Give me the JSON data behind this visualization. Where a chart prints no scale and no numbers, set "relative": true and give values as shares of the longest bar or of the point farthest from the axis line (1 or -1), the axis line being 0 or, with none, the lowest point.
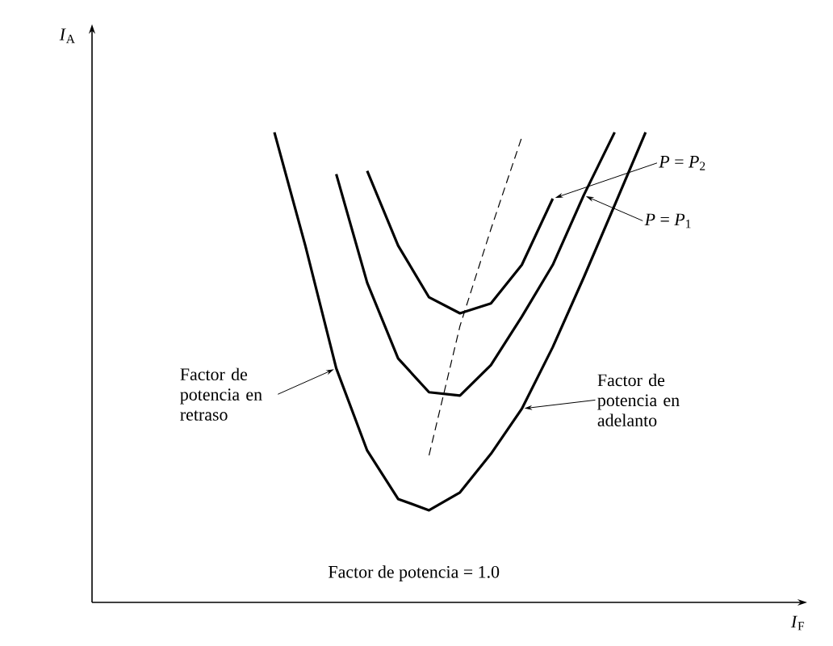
{
  "chart_data": {
    "type": "line",
    "relative": true,
    "categories": [
      null,
      null,
      null,
      null,
      null,
      null,
      null,
      null,
      null,
      null,
      null,
      null,
      null
    ],
    "series": [
      {
        "color": "#000000",
        "values": [
          1.0,
          0.759,
          0.498,
          0.323,
          0.22,
          0.196,
          0.234,
          0.316,
          0.412,
          0.543,
          0.691,
          0.845,
          1.0
        ]
      },
      {
        "color": "#000000",
        "values": [
          null,
          null,
          0.911,
          0.68,
          0.519,
          0.447,
          0.44,
          0.505,
          0.608,
          0.718,
          0.866,
          1.0,
          null
        ]
      },
      {
        "color": "#000000",
        "values": [
          null,
          null,
          null,
          0.918,
          0.759,
          0.649,
          0.615,
          0.636,
          0.718,
          0.859,
          null,
          null,
          null
        ]
      },
      {
        "color": "#000000",
        "line_style": "dashed",
        "values": [
          null,
          null,
          null,
          null,
          null,
          0.313,
          0.588,
          0.794,
          0.99,
          null,
          null,
          null,
          null
        ]
      }
    ],
    "annotations": [
      "*P* = *P*$_{2}$",
      "*P* = *P*$_{1}$",
      "Factor de potencia en retraso",
      "Factor de potencia en adelanto",
      "Factor de potencia = 1.0",
      "*I*$_{A}$",
      "*I*$_{F}$"
    ]
  }
}
